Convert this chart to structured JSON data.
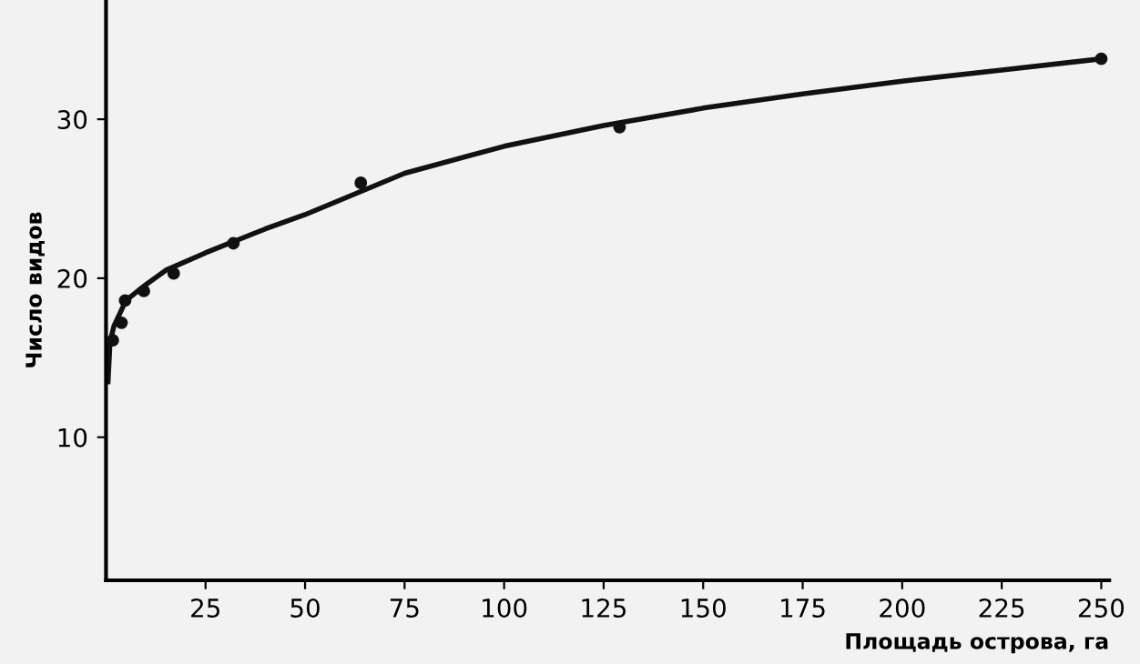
{
  "chart_data": {
    "type": "scatter",
    "xlabel": "Площадь острова, га",
    "ylabel": "Число видов",
    "series": [
      {
        "color": "#111111",
        "marker": "circle",
        "x": [
          1.7,
          3.9,
          4.8,
          9.5,
          17,
          32,
          64,
          129,
          250
        ],
        "values": [
          16.1,
          17.2,
          18.6,
          19.2,
          20.3,
          22.2,
          26.0,
          29.5,
          33.8
        ]
      },
      {
        "type": "line",
        "color": "#111111",
        "marker": "none",
        "line_style": "solid",
        "x": [
          0.5,
          1,
          2,
          5,
          10,
          15,
          25,
          40,
          50,
          75,
          100,
          125,
          150,
          175,
          200,
          225,
          250
        ],
        "values": [
          13.5,
          16,
          17,
          18.6,
          19.6,
          20.5,
          21.6,
          23.1,
          24,
          26.6,
          28.3,
          29.6,
          30.7,
          31.6,
          32.4,
          33.1,
          33.8
        ]
      }
    ],
    "xlim": [
      0,
      252
    ],
    "ylim": [
      1,
      37.5
    ],
    "xticks": [
      25,
      50,
      75,
      100,
      125,
      150,
      175,
      200,
      225,
      250
    ],
    "yticks": [
      10,
      20,
      30
    ],
    "grid": false,
    "legend": false
  }
}
